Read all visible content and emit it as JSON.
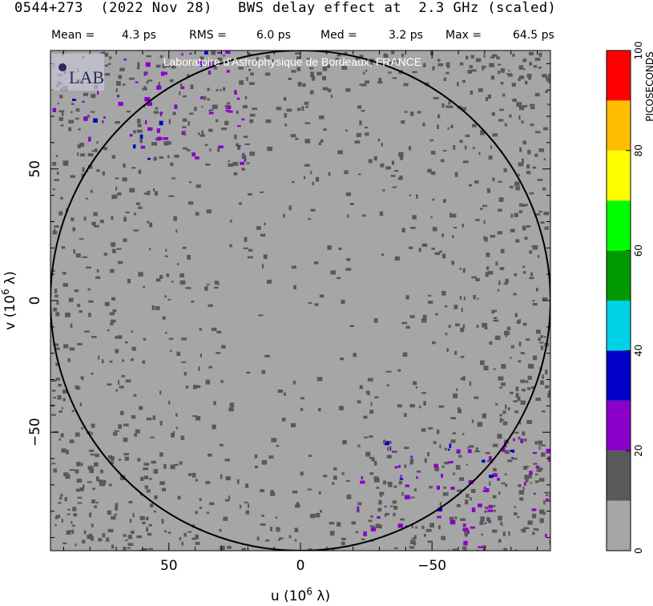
{
  "header": {
    "title": "0544+273  (2022 Nov 28)   BWS delay effect at  2.3 GHz (scaled)",
    "stats": [
      {
        "label": "Mean =",
        "value": "4.3 ps"
      },
      {
        "label": "RMS =",
        "value": "6.0 ps"
      },
      {
        "label": "Med =",
        "value": "3.2 ps"
      },
      {
        "label": "Max =",
        "value": "64.5 ps"
      }
    ]
  },
  "watermark": "Laboratoire d'Astrophysique de Bordeaux, FRANCE",
  "logo_text": "LAB",
  "chart_data": {
    "type": "heatmap",
    "title": "0544+273  (2022 Nov 28)   BWS delay effect at  2.3 GHz (scaled)",
    "xlabel": "u  (10^6 λ)",
    "ylabel": "v  (10^6 λ)",
    "xlim": [
      95,
      -95
    ],
    "ylim": [
      -95,
      95
    ],
    "x_ticks": [
      50,
      0,
      -50
    ],
    "y_ticks": [
      -50,
      0,
      50
    ],
    "x_tick_labels": [
      "50",
      "0",
      "−50"
    ],
    "y_tick_labels": [
      "−50",
      "0",
      "50"
    ],
    "circle_radius": 95,
    "colorbar": {
      "label": "PICOSECONDS",
      "range": [
        0,
        100
      ],
      "ticks": [
        0,
        20,
        40,
        60,
        80,
        100
      ],
      "bins": [
        {
          "from": 0,
          "to": 10,
          "color": "#a6a6a6"
        },
        {
          "from": 10,
          "to": 20,
          "color": "#595959"
        },
        {
          "from": 20,
          "to": 30,
          "color": "#8a00c8"
        },
        {
          "from": 30,
          "to": 40,
          "color": "#0000c8"
        },
        {
          "from": 40,
          "to": 50,
          "color": "#00d2e6"
        },
        {
          "from": 50,
          "to": 60,
          "color": "#009a00"
        },
        {
          "from": 60,
          "to": 70,
          "color": "#00ff00"
        },
        {
          "from": 70,
          "to": 80,
          "color": "#ffff00"
        },
        {
          "from": 80,
          "to": 90,
          "color": "#ffbf00"
        },
        {
          "from": 90,
          "to": 100,
          "color": "#ff0000"
        }
      ]
    },
    "background_color": "#a6a6a6"
  }
}
